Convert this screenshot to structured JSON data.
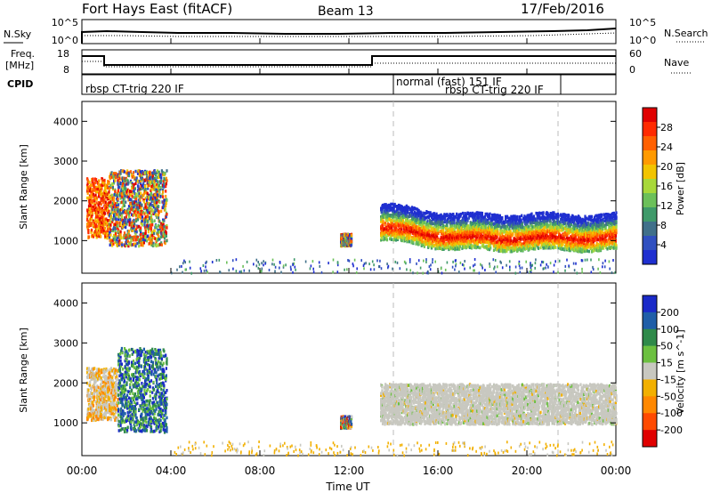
{
  "header": {
    "station": "Fort Hays East (fitACF)",
    "beam": "Beam 13",
    "date": "17/Feb/2016"
  },
  "noise_panel": {
    "left_label": "N.Sky",
    "right_label": "N.Search",
    "left_ticks": [
      "10^5",
      "10^0"
    ],
    "right_ticks": [
      "10^5",
      "10^0"
    ]
  },
  "freq_panel": {
    "left_label_1": "Freq.",
    "left_label_2": "[MHz]",
    "left_ticks": [
      "18",
      "8"
    ],
    "right_label": "Nave",
    "right_ticks": [
      "60",
      "0"
    ]
  },
  "cpid_panel": {
    "label": "CPID",
    "modes": [
      {
        "text": "rbsp CT-trig 220 IF",
        "start_hour": 0,
        "end_hour": 14.0
      },
      {
        "text": "normal (fast) 151 IF",
        "start_hour": 14.0,
        "end_hour": 21.4
      },
      {
        "text": "rbsp CT-trig 220 IF",
        "start_hour": 14.0,
        "end_hour": 21.4
      },
      {
        "text": "",
        "start_hour": 21.4,
        "end_hour": 24
      }
    ]
  },
  "time_axis": {
    "label": "Time UT",
    "ticks": [
      "00:00",
      "04:00",
      "08:00",
      "12:00",
      "16:00",
      "20:00",
      "00:00"
    ]
  },
  "chart_data": [
    {
      "type": "heatmap",
      "title": "Power",
      "ylabel": "Slant Range [km]",
      "y_ticks": [
        1000,
        2000,
        3000,
        4000
      ],
      "ylim": [
        180,
        4500
      ],
      "xlim_hours": [
        0,
        24
      ],
      "colorbar_label": "Power [dB]",
      "colorbar_ticks": [
        4,
        8,
        12,
        16,
        20,
        24,
        28
      ],
      "colorbar_colors": [
        "#1f2fd0",
        "#3050c0",
        "#40708a",
        "#3f9a6a",
        "#6cc05a",
        "#a8d83a",
        "#f2c400",
        "#ff9a00",
        "#ff6000",
        "#ff2a00",
        "#e00000"
      ],
      "regions": [
        {
          "start_hour": 0.2,
          "end_hour": 1.2,
          "range_min": 1100,
          "range_max": 2600,
          "level": "high"
        },
        {
          "start_hour": 1.2,
          "end_hour": 3.8,
          "range_min": 900,
          "range_max": 2800,
          "level": "mixed"
        },
        {
          "start_hour": 11.6,
          "end_hour": 12.1,
          "range_min": 900,
          "range_max": 1200,
          "level": "mixed"
        },
        {
          "start_hour": 13.4,
          "end_hour": 24.0,
          "range_min": 1000,
          "range_max": 2000,
          "level": "band"
        }
      ]
    },
    {
      "type": "heatmap",
      "title": "Velocity",
      "ylabel": "Slant Range [km]",
      "y_ticks": [
        1000,
        2000,
        3000,
        4000
      ],
      "ylim": [
        180,
        4500
      ],
      "xlim_hours": [
        0,
        24
      ],
      "colorbar_label": "Velocity [m s^-1]",
      "colorbar_ticks": [
        200,
        100,
        50,
        15,
        -15,
        -50,
        -100,
        -200
      ],
      "colorbar_colors": [
        "#1a2ac8",
        "#1f5ea8",
        "#2f8a4a",
        "#6cc040",
        "#c8c8c0",
        "#f2b000",
        "#ff8800",
        "#ff4a00",
        "#e00000"
      ],
      "regions": [
        {
          "start_hour": 0.2,
          "end_hour": 1.6,
          "range_min": 1100,
          "range_max": 2400,
          "level": "gray-orange"
        },
        {
          "start_hour": 1.6,
          "end_hour": 3.8,
          "range_min": 800,
          "range_max": 2900,
          "level": "blue-green"
        },
        {
          "start_hour": 11.6,
          "end_hour": 12.1,
          "range_min": 900,
          "range_max": 1200,
          "level": "green-orange"
        },
        {
          "start_hour": 13.4,
          "end_hour": 24.0,
          "range_min": 1000,
          "range_max": 2000,
          "level": "gray"
        }
      ]
    }
  ]
}
